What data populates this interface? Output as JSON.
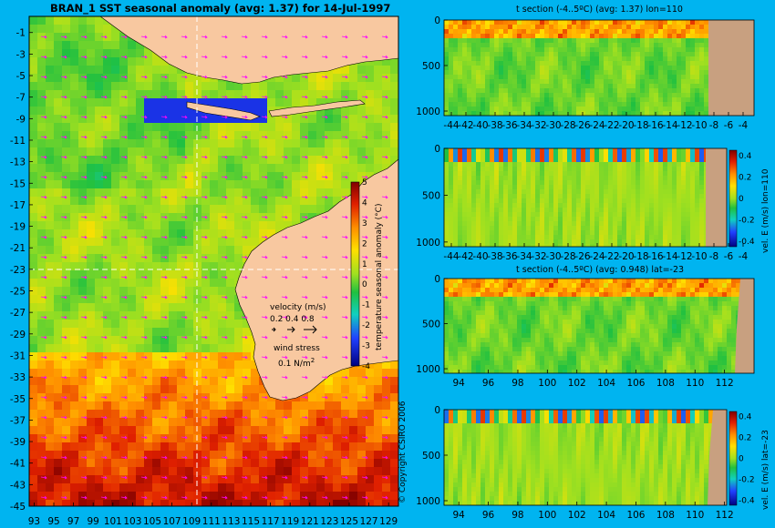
{
  "main_title": "BRAN_1 SST seasonal anomaly (avg: 1.37) for 14-Jul-1997",
  "copyright": "© Copyright CSIRO 2006",
  "colors": {
    "background": "#00b4f0",
    "land": "#f8c8a0",
    "section_land": "#c8a080"
  },
  "chart_data": [
    {
      "type": "heatmap",
      "name": "map",
      "title": "BRAN_1 SST seasonal anomaly (avg: 1.37) for 14-Jul-1997",
      "x_ticks": [
        "93",
        "95",
        "97",
        "99",
        "101",
        "103",
        "105",
        "107",
        "109",
        "111",
        "113",
        "115",
        "117",
        "119",
        "121",
        "123",
        "125",
        "127",
        "129"
      ],
      "y_ticks": [
        "-1",
        "-3",
        "-5",
        "-7",
        "-9",
        "-11",
        "-13",
        "-15",
        "-17",
        "-19",
        "-21",
        "-23",
        "-25",
        "-27",
        "-29",
        "-31",
        "-33",
        "-35",
        "-37",
        "-39",
        "-41",
        "-43",
        "-45"
      ],
      "xlim": [
        92.5,
        130
      ],
      "ylim": [
        -45,
        0.5
      ],
      "colorbar": {
        "label": "temperature seasonal anomaly (°C)",
        "ticks": [
          "5",
          "4",
          "3",
          "2",
          "1",
          "0",
          "-1",
          "-2",
          "-3",
          "-4"
        ],
        "range": [
          -4,
          5
        ]
      },
      "velocity_legend": {
        "title": "velocity (m/s)",
        "values": "0.2 0.4 0.8"
      },
      "wind_legend": {
        "title": "wind stress",
        "value": "0.1 N/m",
        "superscript": "2"
      },
      "section_lines": {
        "lon": 110,
        "lat": -23
      }
    },
    {
      "type": "heatmap",
      "name": "t-section-lon",
      "title": "t section (-4..5ºC) (avg: 1.37) lon=110",
      "x_ticks": [
        "-44",
        "-42",
        "-40",
        "-38",
        "-36",
        "-34",
        "-32",
        "-30",
        "-28",
        "-26",
        "-24",
        "-22",
        "-20",
        "-18",
        "-16",
        "-14",
        "-12",
        "-10",
        "-8",
        "-6",
        "-4"
      ],
      "y_ticks": [
        "0",
        "500",
        "1000"
      ],
      "xlim": [
        -45,
        -2.5
      ],
      "ylim": [
        1050,
        0
      ]
    },
    {
      "type": "heatmap",
      "name": "vel-section-lon",
      "title": "",
      "x_ticks": [
        "-44",
        "-42",
        "-40",
        "-38",
        "-36",
        "-34",
        "-32",
        "-30",
        "-28",
        "-26",
        "-24",
        "-22",
        "-20",
        "-18",
        "-16",
        "-14",
        "-12",
        "-10",
        "-8",
        "-6",
        "-4"
      ],
      "y_ticks": [
        "0",
        "500",
        "1000"
      ],
      "xlim": [
        -45,
        -2.5
      ],
      "ylim": [
        1050,
        0
      ],
      "colorbar": {
        "label": "vel. E (m/s) lon=110",
        "ticks": [
          "0.4",
          "0.2",
          "0",
          "-0.2",
          "-0.4"
        ],
        "range": [
          -0.45,
          0.45
        ]
      }
    },
    {
      "type": "heatmap",
      "name": "t-section-lat",
      "title": "t section (-4..5ºC) (avg: 0.948) lat=-23",
      "x_ticks": [
        "94",
        "96",
        "98",
        "100",
        "102",
        "104",
        "106",
        "108",
        "110",
        "112"
      ],
      "y_ticks": [
        "0",
        "500",
        "1000"
      ],
      "xlim": [
        93,
        114
      ],
      "ylim": [
        1050,
        0
      ]
    },
    {
      "type": "heatmap",
      "name": "vel-section-lat",
      "title": "",
      "x_ticks": [
        "94",
        "96",
        "98",
        "100",
        "102",
        "104",
        "106",
        "108",
        "110",
        "112"
      ],
      "y_ticks": [
        "0",
        "500",
        "1000"
      ],
      "xlim": [
        93,
        114
      ],
      "ylim": [
        1050,
        0
      ],
      "colorbar": {
        "label": "vel. E (m/s) lat=-23",
        "ticks": [
          "0.4",
          "0.2",
          "0",
          "-0.2",
          "-0.4"
        ],
        "range": [
          -0.45,
          0.45
        ]
      }
    }
  ]
}
